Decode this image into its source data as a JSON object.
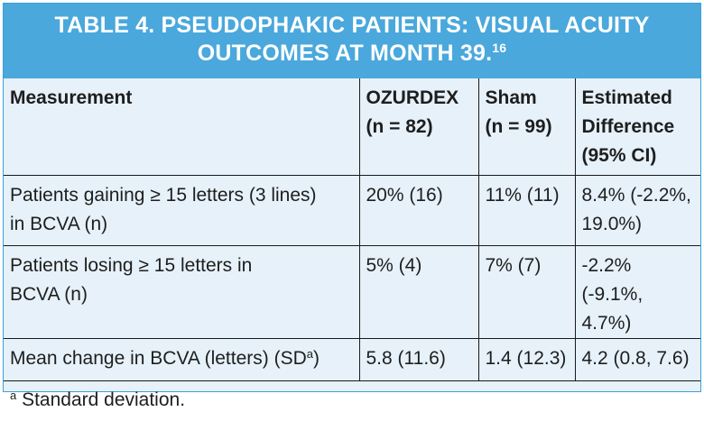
{
  "title": {
    "line1": "TABLE 4. PSEUDOPHAKIC PATIENTS: VISUAL ACUITY",
    "line2": "OUTCOMES AT MONTH 39.",
    "ref": "16"
  },
  "columns": {
    "measurement": "Measurement",
    "ozurdex": [
      "OZURDEX",
      "(n = 82)"
    ],
    "sham": [
      "Sham",
      "(n = 99)"
    ],
    "difference": [
      "Estimated",
      "Difference",
      "(95% CI)"
    ]
  },
  "rows": [
    {
      "measurement": [
        "Patients gaining ≥ 15 letters (3 lines)",
        "in BCVA (n)"
      ],
      "ozurdex": "20% (16)",
      "sham": "11% (11)",
      "difference": [
        "8.4% (-2.2%,",
        "19.0%)"
      ]
    },
    {
      "measurement": [
        "Patients losing ≥ 15 letters in",
        "BCVA (n)"
      ],
      "ozurdex": "5% (4)",
      "sham": "7% (7)",
      "difference": [
        "-2.2% (-9.1%,",
        "4.7%)"
      ]
    },
    {
      "measurement_main": "Mean change in BCVA (letters) (SD",
      "measurement_sup": "a",
      "measurement_end": ")",
      "ozurdex": "5.8 (11.6)",
      "sham": "1.4 (12.3)",
      "difference": "4.2 (0.8, 7.6)"
    }
  ],
  "footnote": {
    "marker": "a",
    "text": " Standard deviation."
  },
  "colors": {
    "title_bg": "#4aa8dc",
    "table_bg": "#e6f1fa",
    "border": "#3d9fd3"
  }
}
